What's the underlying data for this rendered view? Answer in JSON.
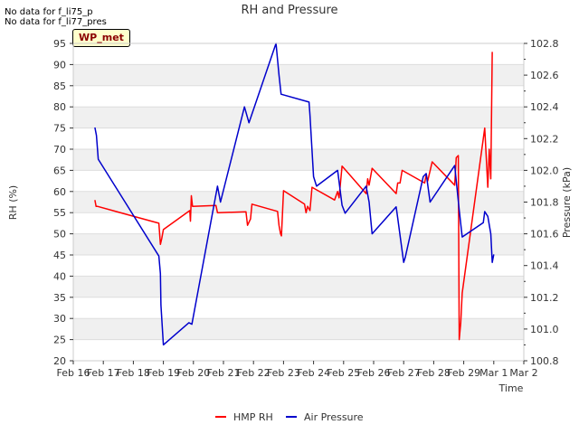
{
  "notes": [
    "No data for f_li75_p",
    "No data for f_li77_pres"
  ],
  "badge": "WP_met",
  "chart_data": {
    "type": "line",
    "title": "RH and Pressure",
    "xlabel": "Time",
    "ylabel": "RH (%)",
    "y2label": "Pressure (kPa)",
    "x_ticks": [
      "Feb 16",
      "Feb 17",
      "Feb 18",
      "Feb 19",
      "Feb 20",
      "Feb 21",
      "Feb 22",
      "Feb 23",
      "Feb 24",
      "Feb 25",
      "Feb 26",
      "Feb 27",
      "Feb 28",
      "Feb 29",
      "Mar 1",
      "Mar 2"
    ],
    "xlim": [
      0,
      15
    ],
    "ylim": [
      20,
      95
    ],
    "y_ticks": [
      20,
      25,
      30,
      35,
      40,
      45,
      50,
      55,
      60,
      65,
      70,
      75,
      80,
      85,
      90,
      95
    ],
    "y2lim": [
      100.8,
      102.8
    ],
    "y2_ticks": [
      "100.8",
      "101.0",
      "101.2",
      "101.4",
      "101.6",
      "101.8",
      "102.0",
      "102.2",
      "102.4",
      "102.6",
      "102.8"
    ],
    "legend": "bottom-center",
    "series": [
      {
        "name": "HMP RH",
        "color": "#ff0000",
        "axis": "left",
        "points": [
          [
            0.72,
            58
          ],
          [
            0.76,
            56.5
          ],
          [
            0.8,
            56.5
          ],
          [
            2.85,
            52.5
          ],
          [
            2.9,
            47.5
          ],
          [
            2.95,
            49
          ],
          [
            3.0,
            51
          ],
          [
            3.88,
            55.5
          ],
          [
            3.9,
            53
          ],
          [
            3.93,
            59
          ],
          [
            3.97,
            56.5
          ],
          [
            4.75,
            56.7
          ],
          [
            4.8,
            55
          ],
          [
            4.85,
            55
          ],
          [
            5.75,
            55.2
          ],
          [
            5.8,
            52
          ],
          [
            5.9,
            53.5
          ],
          [
            5.95,
            57
          ],
          [
            6.8,
            55.3
          ],
          [
            6.85,
            52
          ],
          [
            6.9,
            50
          ],
          [
            6.93,
            49.5
          ],
          [
            7.0,
            60.2
          ],
          [
            7.7,
            57
          ],
          [
            7.75,
            55
          ],
          [
            7.8,
            56.5
          ],
          [
            7.88,
            55.5
          ],
          [
            7.95,
            61
          ],
          [
            8.7,
            58
          ],
          [
            8.8,
            60
          ],
          [
            8.85,
            58.5
          ],
          [
            8.95,
            66
          ],
          [
            9.75,
            59.5
          ],
          [
            9.8,
            63
          ],
          [
            9.85,
            61.5
          ],
          [
            9.95,
            65.5
          ],
          [
            10.75,
            59.5
          ],
          [
            10.8,
            62
          ],
          [
            10.88,
            62
          ],
          [
            10.95,
            65
          ],
          [
            11.7,
            62
          ],
          [
            11.75,
            64
          ],
          [
            11.8,
            62.5
          ],
          [
            11.95,
            67
          ],
          [
            12.7,
            61.5
          ],
          [
            12.75,
            68
          ],
          [
            12.82,
            68.5
          ],
          [
            12.85,
            25
          ],
          [
            12.9,
            29
          ],
          [
            12.95,
            36
          ],
          [
            13.7,
            75
          ],
          [
            13.75,
            68
          ],
          [
            13.8,
            61
          ],
          [
            13.85,
            70
          ],
          [
            13.9,
            63
          ],
          [
            13.95,
            93
          ]
        ]
      },
      {
        "name": "Air Pressure",
        "color": "#0000cc",
        "axis": "right",
        "points": [
          [
            0.72,
            102.27
          ],
          [
            0.77,
            102.22
          ],
          [
            0.83,
            102.07
          ],
          [
            2.85,
            101.46
          ],
          [
            2.9,
            101.35
          ],
          [
            2.92,
            101.15
          ],
          [
            3.0,
            100.9
          ],
          [
            3.85,
            101.04
          ],
          [
            3.95,
            101.03
          ],
          [
            4.8,
            101.9
          ],
          [
            4.9,
            101.8
          ],
          [
            5.7,
            102.4
          ],
          [
            5.85,
            102.3
          ],
          [
            6.75,
            102.8
          ],
          [
            6.85,
            102.6
          ],
          [
            6.92,
            102.48
          ],
          [
            7.85,
            102.43
          ],
          [
            7.88,
            102.35
          ],
          [
            8.0,
            101.96
          ],
          [
            8.1,
            101.9
          ],
          [
            8.8,
            102.0
          ],
          [
            8.95,
            101.78
          ],
          [
            9.05,
            101.73
          ],
          [
            9.75,
            101.9
          ],
          [
            9.85,
            101.8
          ],
          [
            9.95,
            101.6
          ],
          [
            10.75,
            101.77
          ],
          [
            10.8,
            101.7
          ],
          [
            10.9,
            101.56
          ],
          [
            11.0,
            101.42
          ],
          [
            11.05,
            101.45
          ],
          [
            11.65,
            101.96
          ],
          [
            11.75,
            101.98
          ],
          [
            11.88,
            101.8
          ],
          [
            12.7,
            102.03
          ],
          [
            12.85,
            101.75
          ],
          [
            12.95,
            101.58
          ],
          [
            13.65,
            101.67
          ],
          [
            13.7,
            101.74
          ],
          [
            13.8,
            101.71
          ],
          [
            13.9,
            101.6
          ],
          [
            13.95,
            101.42
          ],
          [
            14.0,
            101.47
          ]
        ]
      }
    ]
  }
}
